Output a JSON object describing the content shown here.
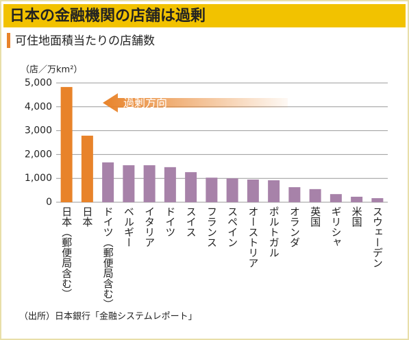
{
  "chart_data": {
    "type": "bar",
    "title": "日本の金融機関の店舗は過剰",
    "subtitle": "可住地面積当たりの店舗数",
    "y_unit": "（店／万km²）",
    "annotation": "過剰方向",
    "source": "（出所）日本銀行「金融システムレポート」",
    "categories": [
      "日本（郵便局含む）",
      "日本",
      "ドイツ（郵便局含む）",
      "ベルギー",
      "イタリア",
      "ドイツ",
      "スイス",
      "フランス",
      "スペイン",
      "オーストリア",
      "ポルトガル",
      "オランダ",
      "英国",
      "ギリシャ",
      "米国",
      "スウェーデン"
    ],
    "values": [
      4830,
      2790,
      1670,
      1550,
      1550,
      1470,
      1260,
      1030,
      1000,
      950,
      920,
      630,
      550,
      340,
      230,
      170
    ],
    "colors": [
      "#e8832a",
      "#e8832a",
      "#a782a9",
      "#a782a9",
      "#a782a9",
      "#a782a9",
      "#a782a9",
      "#a782a9",
      "#a782a9",
      "#a782a9",
      "#a782a9",
      "#a782a9",
      "#a782a9",
      "#a782a9",
      "#a782a9",
      "#a782a9"
    ],
    "ylim": [
      0,
      5000
    ],
    "yticks": [
      0,
      {
        "value": 1000,
        "label": "1,000"
      },
      {
        "value": 2000,
        "label": "2,000"
      },
      {
        "value": 3000,
        "label": "3,000"
      },
      {
        "value": 4000,
        "label": "4,000"
      },
      {
        "value": 5000,
        "label": "5,000"
      }
    ],
    "grid": true
  }
}
